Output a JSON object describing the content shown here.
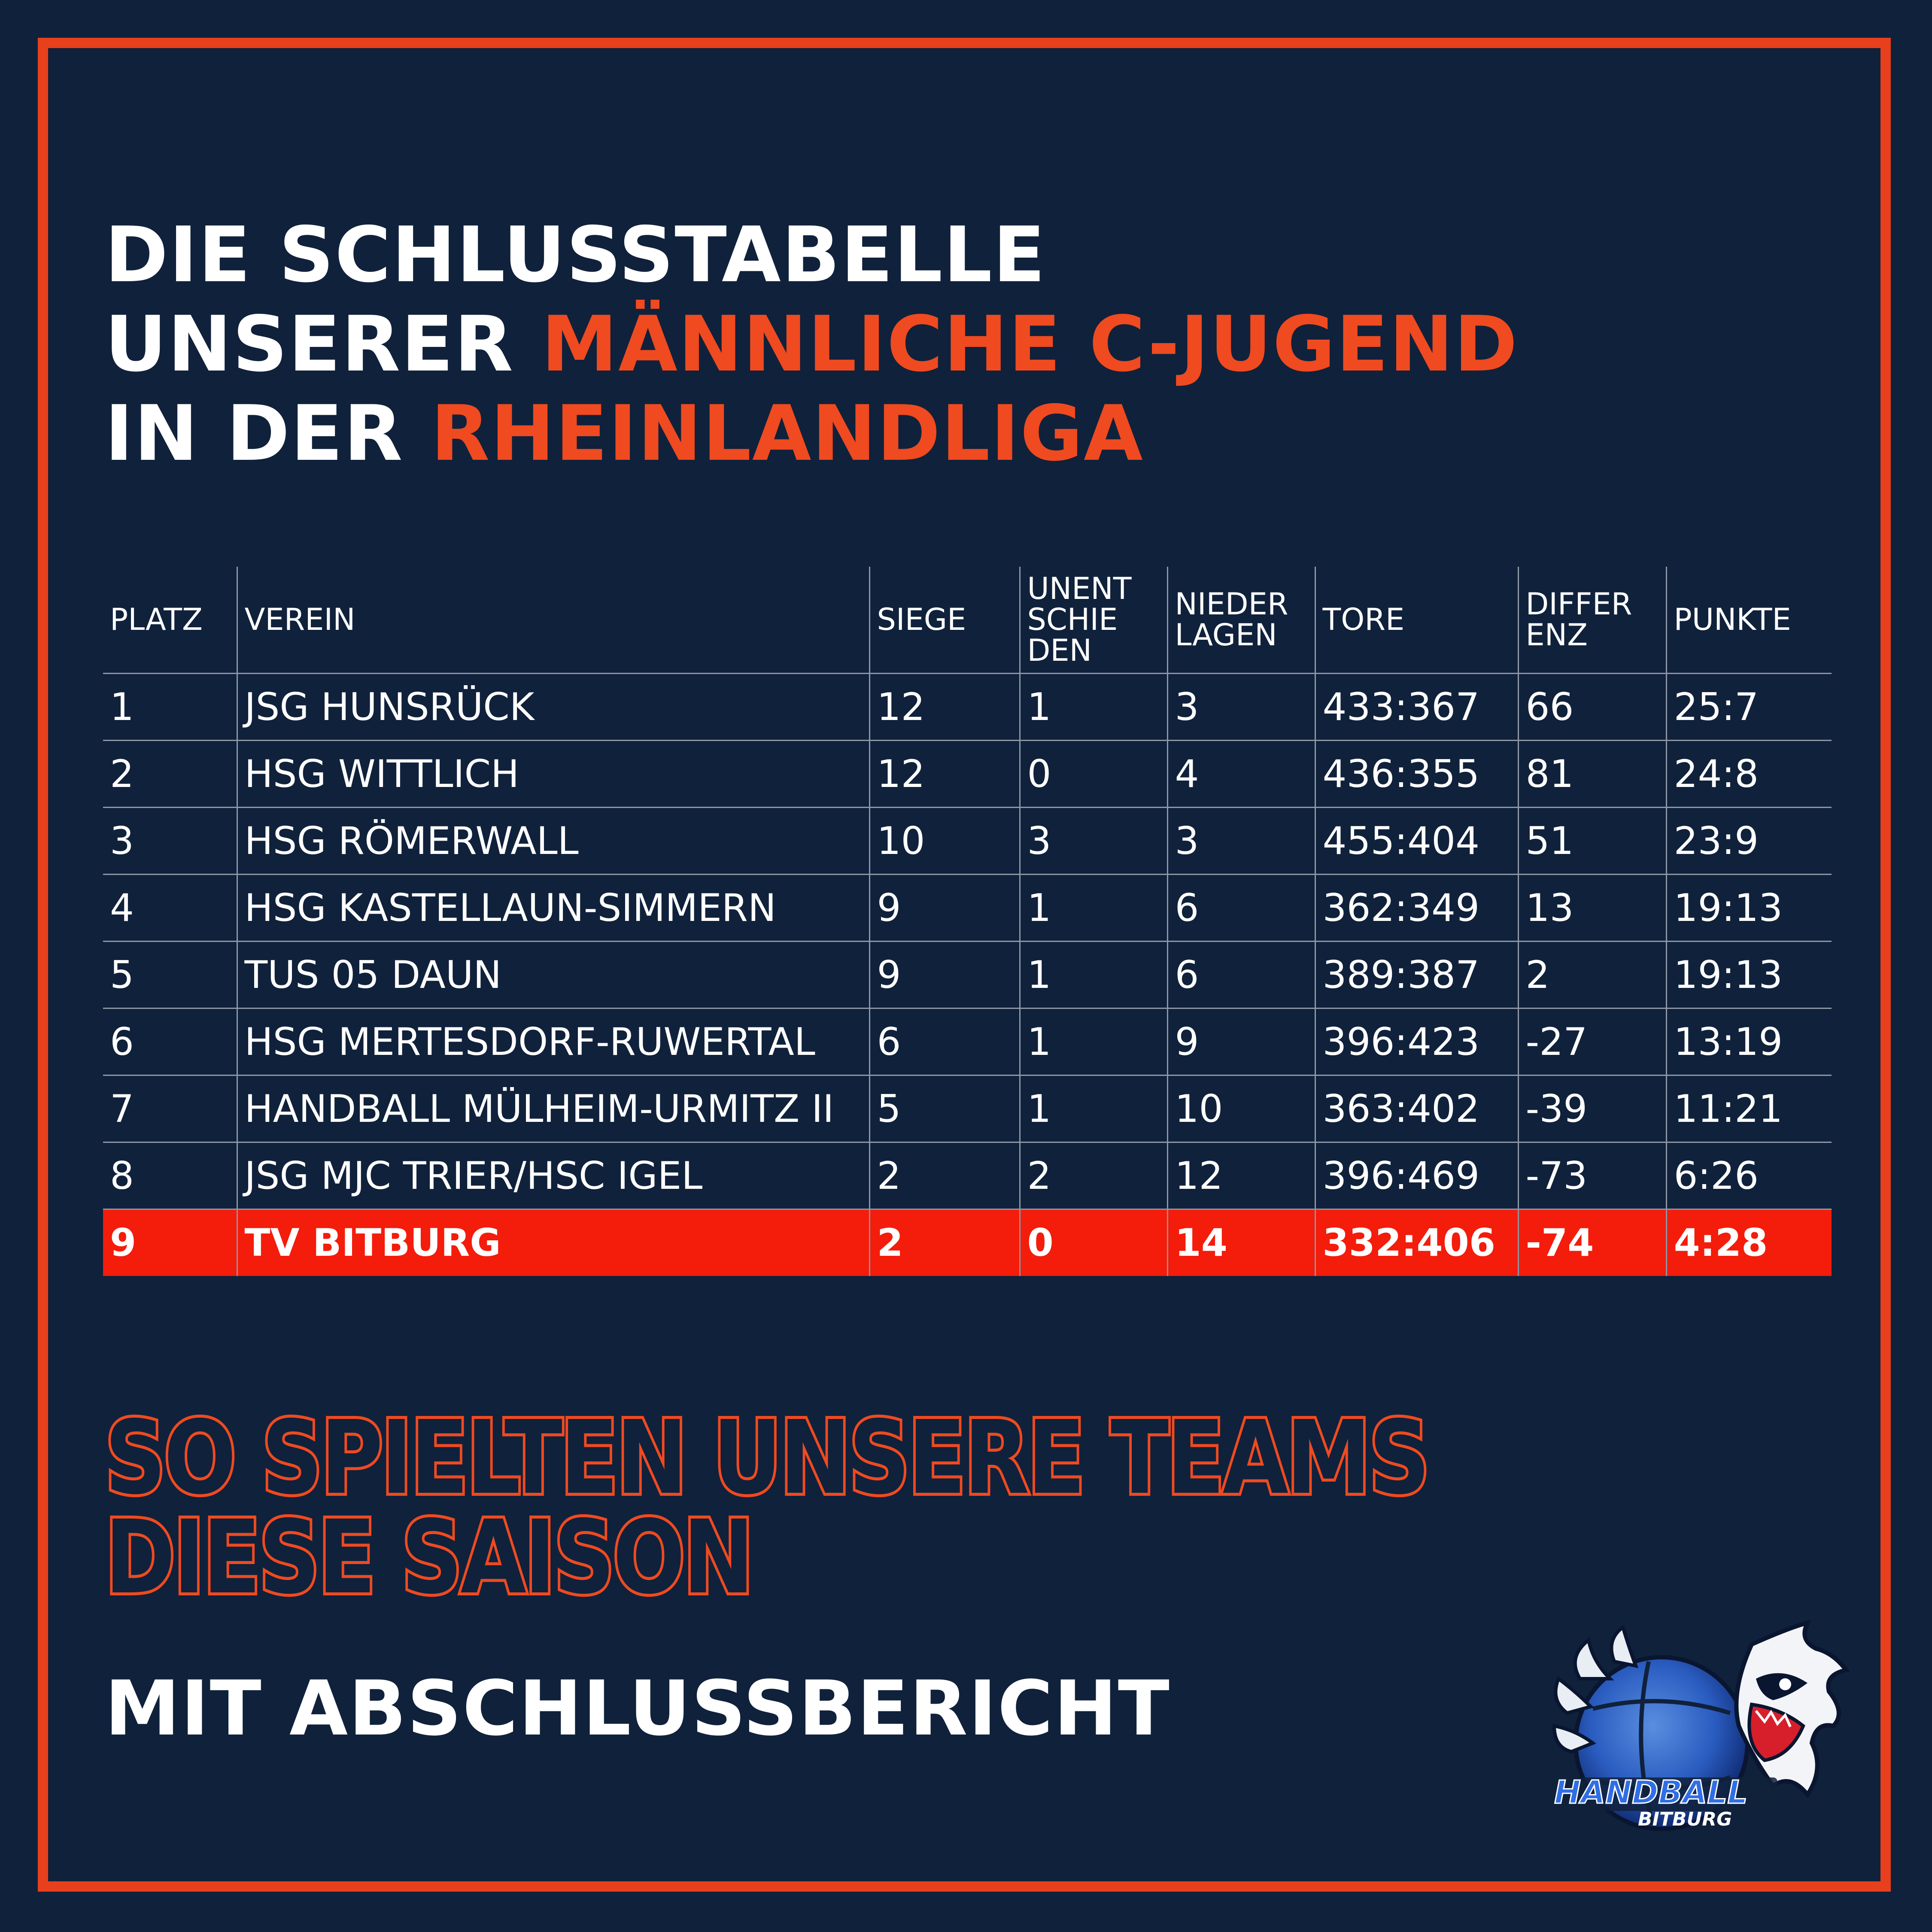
{
  "title": {
    "line1": "Die Schlusstabelle",
    "line2_prefix": "unserer ",
    "line2_accent": "Männliche C-Jugend",
    "line3_prefix": "in der ",
    "line3_accent": "Rheinlandliga"
  },
  "table": {
    "headers": {
      "platz": "Platz",
      "verein": "Verein",
      "siege": "Siege",
      "unentschieden_1": "Unent",
      "unentschieden_2": "schie",
      "unentschieden_3": "den",
      "niederlagen_1": "Nieder",
      "niederlagen_2": "lagen",
      "tore": "Tore",
      "differenz_1": "Differ",
      "differenz_2": "enz",
      "punkte": "Punkte"
    },
    "rows": [
      {
        "platz": "1",
        "verein": "JSG Hunsrück",
        "siege": "12",
        "unentschieden": "1",
        "niederlagen": "3",
        "tore": "433:367",
        "differenz": "66",
        "punkte": "25:7"
      },
      {
        "platz": "2",
        "verein": "HSG Wittlich",
        "siege": "12",
        "unentschieden": "0",
        "niederlagen": "4",
        "tore": "436:355",
        "differenz": "81",
        "punkte": "24:8"
      },
      {
        "platz": "3",
        "verein": "HSG Römerwall",
        "siege": "10",
        "unentschieden": "3",
        "niederlagen": "3",
        "tore": "455:404",
        "differenz": "51",
        "punkte": "23:9"
      },
      {
        "platz": "4",
        "verein": "HSG Kastellaun-Simmern",
        "siege": "9",
        "unentschieden": "1",
        "niederlagen": "6",
        "tore": "362:349",
        "differenz": "13",
        "punkte": "19:13"
      },
      {
        "platz": "5",
        "verein": "TuS 05 Daun",
        "siege": "9",
        "unentschieden": "1",
        "niederlagen": "6",
        "tore": "389:387",
        "differenz": "2",
        "punkte": "19:13"
      },
      {
        "platz": "6",
        "verein": "HSG Mertesdorf-Ruwertal",
        "siege": "6",
        "unentschieden": "1",
        "niederlagen": "9",
        "tore": "396:423",
        "differenz": "-27",
        "punkte": "13:19"
      },
      {
        "platz": "7",
        "verein": "Handball Mülheim-Urmitz II",
        "siege": "5",
        "unentschieden": "1",
        "niederlagen": "10",
        "tore": "363:402",
        "differenz": "-39",
        "punkte": "11:21"
      },
      {
        "platz": "8",
        "verein": "JSG MJC Trier/HSC Igel",
        "siege": "2",
        "unentschieden": "2",
        "niederlagen": "12",
        "tore": "396:469",
        "differenz": "-73",
        "punkte": "6:26"
      },
      {
        "platz": "9",
        "verein": "TV Bitburg",
        "siege": "2",
        "unentschieden": "0",
        "niederlagen": "14",
        "tore": "332:406",
        "differenz": "-74",
        "punkte": "4:28"
      }
    ],
    "highlight_color": "#f41c0b"
  },
  "headline": {
    "line1": "So spielten unsere Teams",
    "line2": "diese Saison"
  },
  "subline": "Mit Abschlussbericht",
  "logo": {
    "text_main": "HANDBALL",
    "text_sub": "BITBURG",
    "icon": "eagle-handball-logo"
  },
  "colors": {
    "background": "#10213b",
    "accent": "#ef4a20",
    "frame": "#e8401c",
    "text": "#ffffff"
  }
}
